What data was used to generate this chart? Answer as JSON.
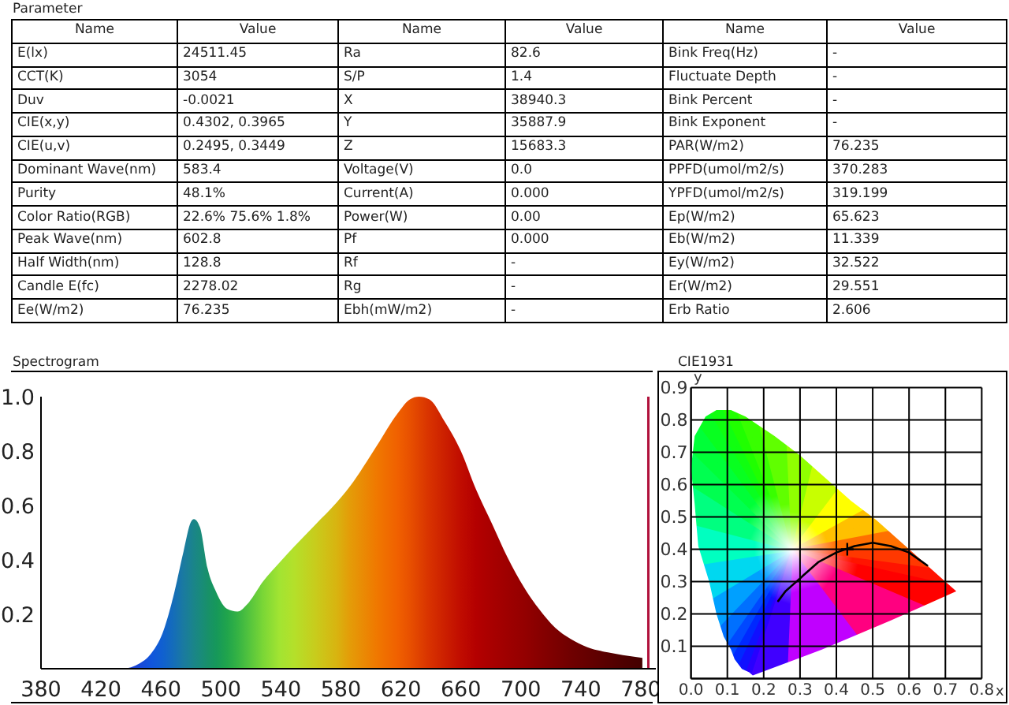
{
  "chart_data": [
    {
      "type": "other",
      "title": "Parameter",
      "cells": [
        [
          "Name",
          "Value",
          "Name",
          "Value",
          "Name",
          "Value"
        ],
        [
          "E(lx)",
          "24511.45",
          "Ra",
          "82.6",
          "Bink Freq(Hz)",
          "-"
        ],
        [
          "CCT(K)",
          "3054",
          "S/P",
          "1.4",
          "Fluctuate Depth",
          "-"
        ],
        [
          "Duv",
          "-0.0021",
          "X",
          "38940.3",
          "Bink Percent",
          "-"
        ],
        [
          "CIE(x,y)",
          "0.4302, 0.3965",
          "Y",
          "35887.9",
          "Bink Exponent",
          "-"
        ],
        [
          "CIE(u,v)",
          "0.2495, 0.3449",
          "Z",
          "15683.3",
          "PAR(W/m2)",
          "76.235"
        ],
        [
          "Dominant Wave(nm)",
          "583.4",
          "Voltage(V)",
          "0.0",
          "PPFD(umol/m2/s)",
          "370.283"
        ],
        [
          "Purity",
          "48.1%",
          "Current(A)",
          "0.000",
          "YPFD(umol/m2/s)",
          "319.199"
        ],
        [
          "Color Ratio(RGB)",
          "22.6% 75.6% 1.8%",
          "Power(W)",
          "0.00",
          "Ep(W/m2)",
          "65.623"
        ],
        [
          "Peak Wave(nm)",
          "602.8",
          "Pf",
          "0.000",
          "Eb(W/m2)",
          "11.339"
        ],
        [
          "Half Width(nm)",
          "128.8",
          "Rf",
          "-",
          "Ey(W/m2)",
          "32.522"
        ],
        [
          "Candle E(fc)",
          "2278.02",
          "Rg",
          "-",
          "Er(W/m2)",
          "29.551"
        ],
        [
          "Ee(W/m2)",
          "76.235",
          "Ebh(mW/m2)",
          "-",
          "Erb Ratio",
          "2.606"
        ]
      ]
    },
    {
      "type": "area",
      "title": "Spectrogram",
      "x": [
        380,
        434,
        446,
        454,
        461,
        468,
        475,
        480,
        482,
        486,
        491,
        497,
        504,
        511,
        518,
        528,
        539,
        549,
        563,
        577,
        586,
        604,
        618,
        626,
        632,
        639,
        649,
        660,
        670,
        681,
        691,
        702,
        712,
        723,
        733,
        744,
        758,
        768,
        781
      ],
      "values": [
        0,
        0,
        0.02,
        0.06,
        0.13,
        0.26,
        0.43,
        0.54,
        0.55,
        0.52,
        0.37,
        0.28,
        0.22,
        0.21,
        0.24,
        0.32,
        0.39,
        0.45,
        0.53,
        0.61,
        0.67,
        0.82,
        0.94,
        0.99,
        1.0,
        0.99,
        0.91,
        0.8,
        0.66,
        0.53,
        0.41,
        0.3,
        0.22,
        0.15,
        0.11,
        0.08,
        0.06,
        0.05,
        0.04
      ],
      "colors": [
        "#1a2aa8",
        "#2038c8",
        "#1848d8",
        "#1056dc",
        "#1060d0",
        "#146cba",
        "#1a7aa0",
        "#1a8290",
        "#1a8588",
        "#198a7c",
        "#18906a",
        "#16985a",
        "#20a44c",
        "#34b244",
        "#50c23e",
        "#7ad636",
        "#a2e432",
        "#b4e02a",
        "#c8cc1c",
        "#d8b410",
        "#e49c08",
        "#f07800",
        "#f06000",
        "#e85000",
        "#e04200",
        "#d83200",
        "#cc2000",
        "#c00c00",
        "#b40000",
        "#a80000",
        "#9e0000",
        "#940000",
        "#880000",
        "#7c0000",
        "#700000",
        "#660000",
        "#580000",
        "#4e0000",
        "#440000"
      ],
      "xlim": [
        380,
        790
      ],
      "xticks": [
        380,
        420,
        460,
        500,
        540,
        580,
        620,
        660,
        700,
        740,
        780
      ],
      "ylim": [
        0,
        1
      ],
      "yticks": [
        0.2,
        0.4,
        0.6,
        0.8,
        {
          "value": 1,
          "label": "1.0"
        }
      ],
      "ref_lines": [
        {
          "axis": "x",
          "value": 785,
          "color": "#b0103a"
        }
      ]
    },
    {
      "type": "line",
      "title": "CIE1931",
      "xlabel": "x",
      "ylabel": "y",
      "grid": true,
      "series": [
        {
          "type": "area",
          "x": [
            0.17,
            0.16,
            0.14,
            0.12,
            0.11,
            0.09,
            0.07,
            0.05,
            0.02,
            0.01,
            0.0,
            0.01,
            0.04,
            0.07,
            0.11,
            0.15,
            0.23,
            0.3,
            0.37,
            0.44,
            0.51,
            0.58,
            0.63,
            0.69,
            0.73,
            0.55,
            0.36
          ],
          "values": [
            0.01,
            0.02,
            0.03,
            0.06,
            0.09,
            0.13,
            0.2,
            0.3,
            0.41,
            0.54,
            0.65,
            0.75,
            0.81,
            0.83,
            0.83,
            0.81,
            0.75,
            0.69,
            0.62,
            0.55,
            0.49,
            0.42,
            0.37,
            0.31,
            0.27,
            0.18,
            0.09
          ],
          "colors": [
            "#4000ff",
            "#2800ff",
            "#1010ff",
            "#0028ff",
            "#0048ff",
            "#0070ff",
            "#00a0ff",
            "#00d8f0",
            "#00ffc0",
            "#00ff80",
            "#00ff50",
            "#00ff38",
            "#08ff20",
            "#10ff10",
            "#20ff00",
            "#38ff00",
            "#60ff00",
            "#90ff00",
            "#c8ff00",
            "#ffff00",
            "#ffc000",
            "#ff7000",
            "#ff3800",
            "#ff1400",
            "#ff0000",
            "#ff0080",
            "#c000ff"
          ]
        },
        {
          "type": "line",
          "color": "#000000",
          "x": [
            0.24,
            0.26,
            0.28,
            0.31,
            0.35,
            0.4,
            0.45,
            0.5,
            0.55,
            0.6,
            0.65
          ],
          "values": [
            0.24,
            0.27,
            0.29,
            0.32,
            0.36,
            0.39,
            0.41,
            0.42,
            0.41,
            0.39,
            0.35
          ]
        },
        {
          "type": "scatter",
          "color": "#000000",
          "marker": "cross",
          "x": [
            0.43
          ],
          "values": [
            0.4
          ]
        }
      ],
      "xlim": [
        0,
        0.8
      ],
      "xticks": [
        {
          "value": 0,
          "label": "0.0"
        },
        0.1,
        0.2,
        0.3,
        0.4,
        0.5,
        0.6,
        0.7,
        0.8
      ],
      "ylim": [
        0,
        0.9
      ],
      "yticks": [
        {
          "value": 0,
          "label": null
        },
        0.1,
        0.2,
        0.3,
        0.4,
        0.5,
        0.6,
        0.7,
        0.8,
        0.9
      ]
    }
  ]
}
